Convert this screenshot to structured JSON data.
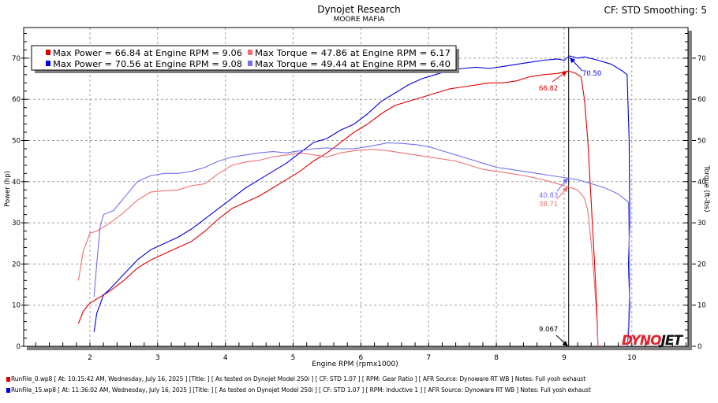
{
  "header": {
    "title": "Dynojet Research",
    "subtitle": "MOORE MAFIA",
    "cf_smoothing": "CF: STD Smoothing: 5"
  },
  "legend": [
    {
      "power_label": "Max Power = 66.84 at Engine RPM = 9.06",
      "torque_label": "Max Torque = 47.86 at Engine RPM = 6.17",
      "power_color": "#e00000",
      "torque_color": "#f07070"
    },
    {
      "power_label": "Max Power = 70.56 at Engine RPM = 9.08",
      "torque_label": "Max Torque = 49.44 at Engine RPM = 6.40",
      "power_color": "#0000e0",
      "torque_color": "#7070f0"
    }
  ],
  "annotations": {
    "cursor_rpm": "9.067",
    "power_run0": "66.82",
    "power_run1": "70.50",
    "torque_run0": "38.71",
    "torque_run1": "40.83"
  },
  "logo": "DYNOJET",
  "footer": [
    {
      "text": "RunFile_0.wp8 [  At: 10:15:42 AM, Wednesday, July 16, 2025 ] [Title:  ]  [ As tested on Dynojet Model 250i ] [ CF: STD 1.07 ] [ RPM: Gear Ratio ] [ AFR Source: Dynoware RT WB ] Notes: Full yosh exhaust",
      "color": "#e00000"
    },
    {
      "text": "RunFile_15.wp8 [  At: 11:36:02 AM, Wednesday, July 16, 2025 ] [Title:  ]  [ As tested on Dynojet Model 250i ] [ CF: STD 1.07 ] [ RPM: Inductive 1 ] [ AFR Source: Dynoware RT WB ] Notes: Full yosh exhaust",
      "color": "#0000e0"
    }
  ],
  "chart_data": {
    "type": "line",
    "title": "Dynojet Research",
    "subtitle": "MOORE MAFIA",
    "xlabel": "Engine RPM (rpmx1000)",
    "ylabel": "Power (hp)",
    "y2label": "Torque (ft-lbs)",
    "xlim": [
      1,
      10.9
    ],
    "ylim": [
      0,
      77
    ],
    "y2lim": [
      0,
      77
    ],
    "xticks": [
      "2",
      "3",
      "4",
      "5",
      "6",
      "7",
      "8",
      "9",
      "10"
    ],
    "yticks": [
      "0",
      "10",
      "20",
      "30",
      "40",
      "50",
      "60",
      "70"
    ],
    "y2ticks": [
      "0",
      "10",
      "20",
      "30",
      "40",
      "50",
      "60",
      "70"
    ],
    "grid": true,
    "legend_position": "top-left",
    "cursor_x": 9.067,
    "series": [
      {
        "name": "Power Run 0",
        "color": "#e00000",
        "axis": "left",
        "points": [
          [
            1.83,
            5.5
          ],
          [
            1.9,
            8.5
          ],
          [
            2.0,
            10.5
          ],
          [
            2.1,
            11.5
          ],
          [
            2.3,
            13.5
          ],
          [
            2.5,
            16
          ],
          [
            2.7,
            19
          ],
          [
            2.9,
            21
          ],
          [
            3.1,
            22.5
          ],
          [
            3.3,
            24
          ],
          [
            3.5,
            25.5
          ],
          [
            3.7,
            28
          ],
          [
            3.9,
            31
          ],
          [
            4.1,
            33.5
          ],
          [
            4.3,
            35
          ],
          [
            4.5,
            36.5
          ],
          [
            4.7,
            38.5
          ],
          [
            4.9,
            40.5
          ],
          [
            5.1,
            42.5
          ],
          [
            5.3,
            45
          ],
          [
            5.5,
            47
          ],
          [
            5.7,
            49.5
          ],
          [
            5.9,
            52
          ],
          [
            6.1,
            54
          ],
          [
            6.3,
            56.5
          ],
          [
            6.5,
            58.5
          ],
          [
            6.7,
            59.5
          ],
          [
            6.9,
            60.5
          ],
          [
            7.1,
            61.5
          ],
          [
            7.3,
            62.5
          ],
          [
            7.5,
            63
          ],
          [
            7.7,
            63.5
          ],
          [
            7.9,
            64
          ],
          [
            8.1,
            64
          ],
          [
            8.3,
            64.5
          ],
          [
            8.5,
            65.5
          ],
          [
            8.7,
            66
          ],
          [
            8.9,
            66.3
          ],
          [
            9.06,
            66.84
          ],
          [
            9.15,
            66.5
          ],
          [
            9.25,
            65.5
          ],
          [
            9.3,
            60
          ],
          [
            9.35,
            50
          ],
          [
            9.4,
            35
          ],
          [
            9.45,
            20
          ],
          [
            9.48,
            10
          ],
          [
            9.5,
            0
          ]
        ]
      },
      {
        "name": "Torque Run 0",
        "color": "#f07070",
        "axis": "right",
        "points": [
          [
            1.83,
            16
          ],
          [
            1.9,
            23
          ],
          [
            2.0,
            27.5
          ],
          [
            2.1,
            28
          ],
          [
            2.3,
            30
          ],
          [
            2.5,
            32.5
          ],
          [
            2.7,
            35.5
          ],
          [
            2.9,
            37.5
          ],
          [
            3.1,
            37.8
          ],
          [
            3.3,
            38
          ],
          [
            3.5,
            39
          ],
          [
            3.7,
            39.5
          ],
          [
            3.9,
            42
          ],
          [
            4.1,
            44
          ],
          [
            4.3,
            44.8
          ],
          [
            4.5,
            45.2
          ],
          [
            4.7,
            46
          ],
          [
            4.9,
            46.5
          ],
          [
            5.1,
            47
          ],
          [
            5.3,
            46.5
          ],
          [
            5.5,
            46
          ],
          [
            5.7,
            47
          ],
          [
            5.9,
            47.5
          ],
          [
            6.17,
            47.86
          ],
          [
            6.4,
            47.5
          ],
          [
            6.6,
            47
          ],
          [
            6.8,
            46.5
          ],
          [
            7.0,
            46
          ],
          [
            7.2,
            45.5
          ],
          [
            7.4,
            45
          ],
          [
            7.6,
            44
          ],
          [
            7.8,
            43
          ],
          [
            8.0,
            42.5
          ],
          [
            8.2,
            42
          ],
          [
            8.4,
            41.5
          ],
          [
            8.6,
            40.8
          ],
          [
            8.8,
            40
          ],
          [
            9.0,
            39
          ],
          [
            9.067,
            38.71
          ],
          [
            9.2,
            38
          ],
          [
            9.3,
            36
          ],
          [
            9.35,
            33
          ],
          [
            9.4,
            25
          ],
          [
            9.45,
            15
          ],
          [
            9.48,
            7
          ],
          [
            9.5,
            0
          ]
        ]
      },
      {
        "name": "Power Run 1",
        "color": "#0000e0",
        "axis": "left",
        "points": [
          [
            2.06,
            3.5
          ],
          [
            2.1,
            8
          ],
          [
            2.2,
            12.5
          ],
          [
            2.3,
            14
          ],
          [
            2.5,
            17.5
          ],
          [
            2.7,
            21
          ],
          [
            2.9,
            23.5
          ],
          [
            3.1,
            25
          ],
          [
            3.3,
            26.5
          ],
          [
            3.5,
            28.5
          ],
          [
            3.7,
            31
          ],
          [
            3.9,
            33.5
          ],
          [
            4.1,
            36
          ],
          [
            4.3,
            38.5
          ],
          [
            4.5,
            40.5
          ],
          [
            4.7,
            42.5
          ],
          [
            4.9,
            44.5
          ],
          [
            5.1,
            47
          ],
          [
            5.3,
            49.5
          ],
          [
            5.5,
            50.5
          ],
          [
            5.7,
            52.5
          ],
          [
            5.9,
            54
          ],
          [
            6.1,
            56.5
          ],
          [
            6.3,
            59.5
          ],
          [
            6.5,
            61.5
          ],
          [
            6.7,
            63.5
          ],
          [
            6.9,
            65
          ],
          [
            7.1,
            66
          ],
          [
            7.3,
            67
          ],
          [
            7.5,
            67.5
          ],
          [
            7.7,
            67.8
          ],
          [
            7.9,
            67.5
          ],
          [
            8.1,
            68
          ],
          [
            8.3,
            68.5
          ],
          [
            8.5,
            69
          ],
          [
            8.7,
            69.5
          ],
          [
            8.9,
            69.8
          ],
          [
            9.0,
            69.5
          ],
          [
            9.08,
            70.56
          ],
          [
            9.2,
            70
          ],
          [
            9.3,
            70.3
          ],
          [
            9.5,
            69.5
          ],
          [
            9.7,
            68.5
          ],
          [
            9.85,
            67
          ],
          [
            9.93,
            66
          ],
          [
            9.96,
            50
          ],
          [
            9.97,
            30
          ],
          [
            9.95,
            20
          ],
          [
            9.97,
            10
          ],
          [
            9.95,
            3
          ],
          [
            9.93,
            0
          ]
        ]
      },
      {
        "name": "Torque Run 1",
        "color": "#7070f0",
        "axis": "right",
        "points": [
          [
            2.06,
            12
          ],
          [
            2.1,
            20
          ],
          [
            2.15,
            29
          ],
          [
            2.2,
            32
          ],
          [
            2.35,
            33
          ],
          [
            2.5,
            36
          ],
          [
            2.7,
            40
          ],
          [
            2.9,
            41.5
          ],
          [
            3.1,
            42
          ],
          [
            3.3,
            42
          ],
          [
            3.5,
            42.5
          ],
          [
            3.7,
            43.5
          ],
          [
            3.9,
            45
          ],
          [
            4.1,
            46
          ],
          [
            4.3,
            46.5
          ],
          [
            4.5,
            47
          ],
          [
            4.7,
            47.3
          ],
          [
            4.9,
            47
          ],
          [
            5.1,
            47.5
          ],
          [
            5.3,
            48
          ],
          [
            5.5,
            48.2
          ],
          [
            5.7,
            48
          ],
          [
            5.9,
            48
          ],
          [
            6.1,
            48.5
          ],
          [
            6.4,
            49.44
          ],
          [
            6.6,
            49.3
          ],
          [
            6.8,
            49
          ],
          [
            7.0,
            48.5
          ],
          [
            7.2,
            47.5
          ],
          [
            7.4,
            46.5
          ],
          [
            7.6,
            45.5
          ],
          [
            7.8,
            44.5
          ],
          [
            8.0,
            43.5
          ],
          [
            8.2,
            43
          ],
          [
            8.4,
            42.5
          ],
          [
            8.6,
            42
          ],
          [
            8.8,
            41.5
          ],
          [
            9.067,
            40.83
          ],
          [
            9.2,
            40.5
          ],
          [
            9.4,
            39.5
          ],
          [
            9.6,
            38.5
          ],
          [
            9.8,
            37
          ],
          [
            9.95,
            35
          ],
          [
            9.96,
            26
          ],
          [
            9.97,
            15
          ],
          [
            9.95,
            5
          ],
          [
            9.93,
            0
          ]
        ]
      }
    ]
  }
}
